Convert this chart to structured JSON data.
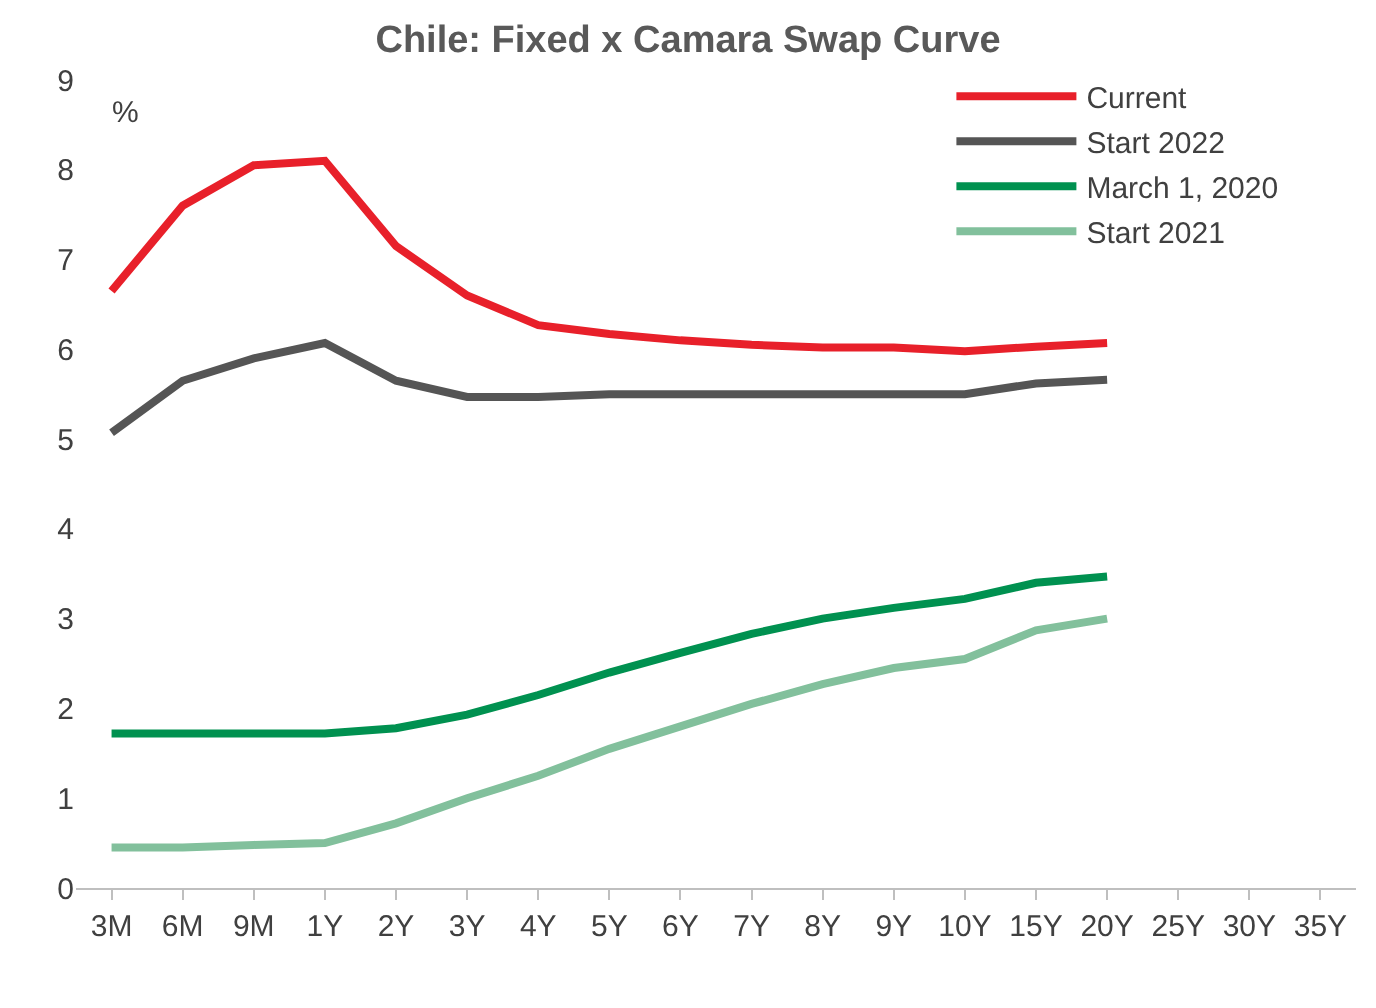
{
  "chart_data": {
    "type": "line",
    "title": "Chile: Fixed x Camara Swap Curve",
    "ylabel": "%",
    "categories": [
      "3M",
      "6M",
      "9M",
      "1Y",
      "2Y",
      "3Y",
      "4Y",
      "5Y",
      "6Y",
      "7Y",
      "8Y",
      "9Y",
      "10Y",
      "15Y",
      "20Y",
      "25Y",
      "30Y",
      "35Y"
    ],
    "series": [
      {
        "name": "Current",
        "color": "#e8202a",
        "values": [
          6.65,
          7.6,
          8.05,
          8.1,
          7.15,
          6.6,
          6.27,
          6.17,
          6.1,
          6.05,
          6.02,
          6.02,
          5.98,
          6.03,
          6.07,
          null,
          null,
          null
        ]
      },
      {
        "name": "Start 2022",
        "color": "#555555",
        "values": [
          5.07,
          5.65,
          5.9,
          6.07,
          5.65,
          5.47,
          5.47,
          5.5,
          5.5,
          5.5,
          5.5,
          5.5,
          5.5,
          5.62,
          5.66,
          null,
          null,
          null
        ]
      },
      {
        "name": "March 1, 2020",
        "color": "#009150",
        "values": [
          1.72,
          1.72,
          1.72,
          1.72,
          1.78,
          1.93,
          2.15,
          2.4,
          2.62,
          2.83,
          3.0,
          3.12,
          3.22,
          3.4,
          3.47,
          null,
          null,
          null
        ]
      },
      {
        "name": "Start 2021",
        "color": "#82c09c",
        "values": [
          0.45,
          0.45,
          0.48,
          0.5,
          0.72,
          1.0,
          1.25,
          1.55,
          1.8,
          2.05,
          2.27,
          2.45,
          2.55,
          2.87,
          3.0,
          null,
          null,
          null
        ]
      }
    ],
    "ylim": [
      0,
      9
    ],
    "yticks": [
      0,
      1,
      2,
      3,
      4,
      5,
      6,
      7,
      8,
      9
    ],
    "grid": false,
    "legend": "top right",
    "marker": "none",
    "line_style": "solid"
  }
}
